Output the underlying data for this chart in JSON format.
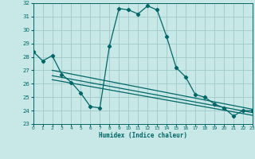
{
  "bg_color": "#c8e8e8",
  "grid_color": "#a0c8c8",
  "line_color": "#006666",
  "xlabel": "Humidex (Indice chaleur)",
  "xmin": 0,
  "xmax": 23,
  "ymin": 23,
  "ymax": 32,
  "yticks": [
    23,
    24,
    25,
    26,
    27,
    28,
    29,
    30,
    31,
    32
  ],
  "xticks": [
    0,
    1,
    2,
    3,
    4,
    5,
    6,
    7,
    8,
    9,
    10,
    11,
    12,
    13,
    14,
    15,
    16,
    17,
    18,
    19,
    20,
    21,
    22,
    23
  ],
  "curve1_x": [
    0,
    1,
    2,
    3,
    4,
    5,
    6,
    7,
    8,
    9,
    10,
    11,
    12,
    13,
    14,
    15,
    16,
    17,
    18,
    19,
    20,
    21,
    22,
    23
  ],
  "curve1_y": [
    28.4,
    27.7,
    28.1,
    26.7,
    26.1,
    25.3,
    24.3,
    24.2,
    28.8,
    31.6,
    31.5,
    31.2,
    31.8,
    31.5,
    29.5,
    27.2,
    26.5,
    25.2,
    25.0,
    24.5,
    24.2,
    23.6,
    24.0,
    24.0
  ],
  "line2_x": [
    2,
    23
  ],
  "line2_y": [
    27.0,
    24.1
  ],
  "line3_x": [
    2,
    23
  ],
  "line3_y": [
    26.6,
    23.85
  ],
  "line4_x": [
    2,
    23
  ],
  "line4_y": [
    26.3,
    23.65
  ]
}
